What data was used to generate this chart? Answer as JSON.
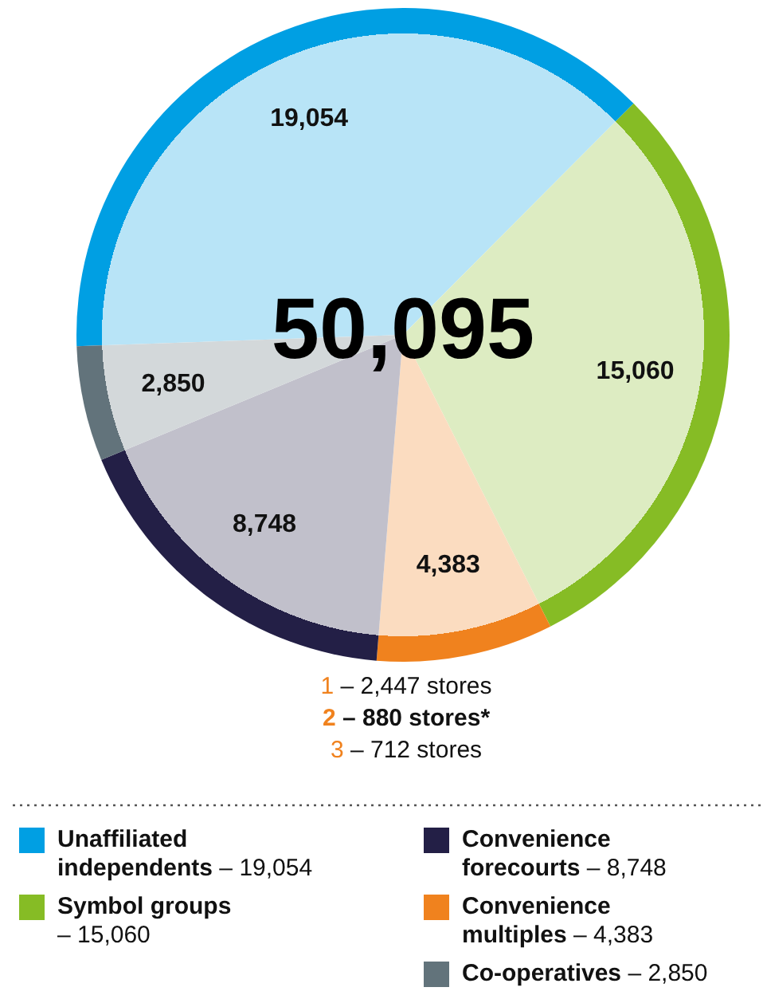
{
  "chart_data": {
    "type": "pie",
    "categories": [
      "Unaffiliated independents – 19,054",
      "Symbol groups – 15,060",
      "Convenience multiples – 4,383",
      "Convenience forecourts – 8,748",
      "Co-operatives – 2,850"
    ],
    "values": [
      19054,
      15060,
      4383,
      8748,
      2850
    ],
    "value_labels": [
      "19,054",
      "15,060",
      "4,383",
      "8,748",
      "2,850"
    ],
    "colors": [
      "#009fe3",
      "#86bc25",
      "#f0821e",
      "#231f46",
      "#62737b"
    ],
    "legend": "bottom",
    "annotations": [
      "50,095",
      "1 – 2,447 stores",
      "2 – 880 stores*",
      "3 – 712 stores"
    ]
  }
}
